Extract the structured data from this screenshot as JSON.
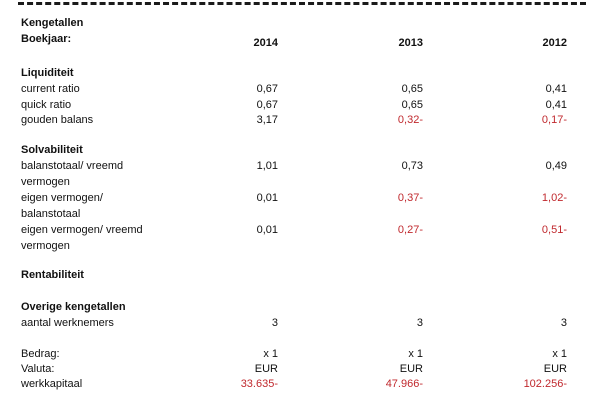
{
  "header": {
    "title": "Kengetallen",
    "year_label": "Boekjaar:",
    "years": [
      "2014",
      "2013",
      "2012"
    ]
  },
  "liquiditeit": {
    "title": "Liquiditeit",
    "rows": [
      {
        "label": "current ratio",
        "values": [
          "0,67",
          "0,65",
          "0,41"
        ]
      },
      {
        "label": "quick ratio",
        "values": [
          "0,67",
          "0,65",
          "0,41"
        ]
      },
      {
        "label": "gouden balans",
        "values": [
          "3,17",
          "0,32-",
          "0,17-"
        ]
      }
    ]
  },
  "solvabiliteit": {
    "title": "Solvabiliteit",
    "rows": [
      {
        "label1": "balanstotaal/ vreemd",
        "label2": "vermogen",
        "values": [
          "1,01",
          "0,73",
          "0,49"
        ]
      },
      {
        "label1": "eigen vermogen/",
        "label2": "balanstotaal",
        "values": [
          "0,01",
          "0,37-",
          "1,02-"
        ]
      },
      {
        "label1": "eigen vermogen/ vreemd",
        "label2": "vermogen",
        "values": [
          "0,01",
          "0,27-",
          "0,51-"
        ]
      }
    ]
  },
  "rentabiliteit": {
    "title": "Rentabiliteit"
  },
  "overige": {
    "title": "Overige kengetallen",
    "rows": [
      {
        "label": "aantal werknemers",
        "values": [
          "3",
          "3",
          "3"
        ]
      }
    ]
  },
  "footer": {
    "rows": [
      {
        "label": "Bedrag:",
        "values": [
          "x 1",
          "x 1",
          "x 1"
        ]
      },
      {
        "label": "Valuta:",
        "values": [
          "EUR",
          "EUR",
          "EUR"
        ]
      },
      {
        "label": "werkkapitaal",
        "values": [
          "33.635-",
          "47.966-",
          "102.256-"
        ]
      }
    ]
  },
  "colors": {
    "text": "#111111",
    "negative": "#c0282d"
  }
}
